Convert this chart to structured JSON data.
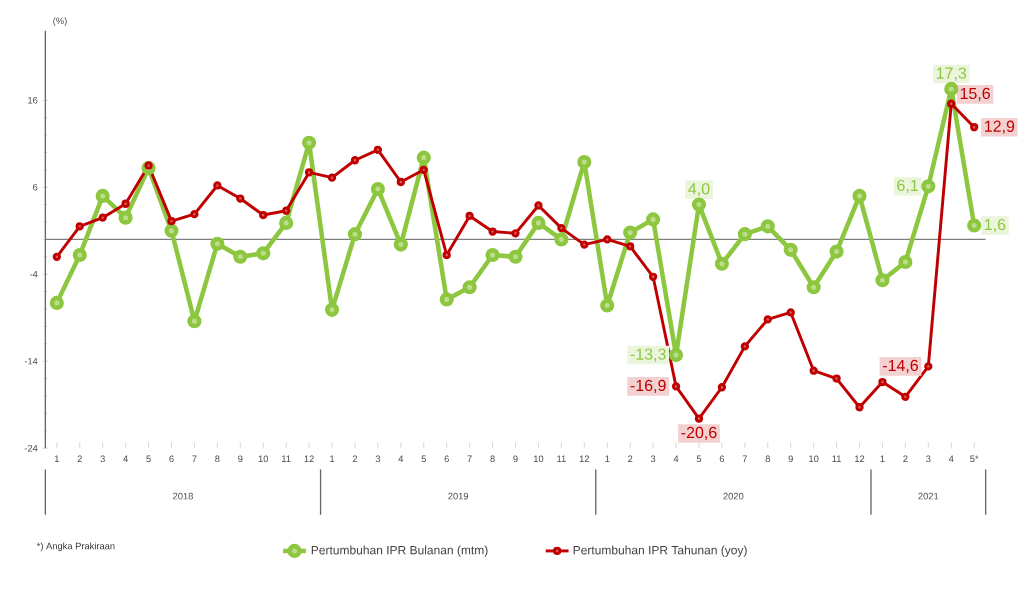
{
  "chart_data": {
    "type": "line",
    "ylabel": "(%)",
    "categories": [
      "1",
      "2",
      "3",
      "4",
      "5",
      "6",
      "7",
      "8",
      "9",
      "10",
      "11",
      "12",
      "1",
      "2",
      "3",
      "4",
      "5",
      "6",
      "7",
      "8",
      "9",
      "10",
      "11",
      "12",
      "1",
      "2",
      "3",
      "4",
      "5",
      "6",
      "7",
      "8",
      "9",
      "10",
      "11",
      "12",
      "1",
      "2",
      "3",
      "4",
      "5*"
    ],
    "series": [
      {
        "name": "Pertumbuhan IPR Bulanan (mtm)",
        "color": "#8dc63f",
        "values": [
          -7.3,
          -1.8,
          5.0,
          2.5,
          8.2,
          1.0,
          -9.4,
          -0.5,
          -2.0,
          -1.6,
          1.9,
          11.1,
          -8.1,
          0.6,
          5.8,
          -0.6,
          9.4,
          -6.9,
          -5.5,
          -1.8,
          -2.0,
          1.9,
          0.0,
          8.9,
          -7.6,
          0.8,
          2.3,
          -13.3,
          4.0,
          -2.8,
          0.6,
          1.5,
          -1.2,
          -5.5,
          -1.4,
          5.0,
          -4.7,
          -2.6,
          6.1,
          17.3,
          1.6
        ],
        "value_labels": [
          null,
          null,
          null,
          null,
          null,
          null,
          null,
          null,
          null,
          null,
          null,
          null,
          null,
          null,
          null,
          null,
          null,
          null,
          null,
          null,
          null,
          null,
          null,
          null,
          null,
          null,
          null,
          "-13,3",
          "4,0",
          null,
          null,
          null,
          null,
          null,
          null,
          null,
          null,
          null,
          "6,1",
          "17,3",
          "1,6"
        ]
      },
      {
        "name": "Pertumbuhan IPR Tahunan (yoy)",
        "color": "#c00000",
        "values": [
          -2.0,
          1.5,
          2.5,
          4.1,
          8.5,
          2.1,
          2.9,
          6.2,
          4.7,
          2.8,
          3.3,
          7.7,
          7.1,
          9.1,
          10.3,
          6.6,
          8.0,
          -1.8,
          2.7,
          0.9,
          0.7,
          3.9,
          1.3,
          -0.6,
          0.0,
          -0.8,
          -4.3,
          -16.9,
          -20.6,
          -17.0,
          -12.3,
          -9.2,
          -8.4,
          -15.1,
          -16.0,
          -19.3,
          -16.4,
          -18.1,
          -14.6,
          15.6,
          12.9
        ],
        "value_labels": [
          null,
          null,
          null,
          null,
          null,
          null,
          null,
          null,
          null,
          null,
          null,
          null,
          null,
          null,
          null,
          null,
          null,
          null,
          null,
          null,
          null,
          null,
          null,
          null,
          null,
          null,
          null,
          "-16,9",
          "-20,6",
          null,
          null,
          null,
          null,
          null,
          null,
          null,
          null,
          null,
          "-14,6",
          "15,6",
          "12,9"
        ]
      }
    ],
    "ylim": [
      -24,
      24
    ],
    "yticks": [
      -24,
      -14,
      -4,
      6,
      16
    ],
    "ref_lines": [
      {
        "axis": "y",
        "value": 0,
        "color": "#7f7f7f"
      }
    ],
    "annotations": [
      "2018",
      "2019",
      "2020",
      "2021",
      "*) Angka Prakiraan"
    ],
    "legend": "bottom",
    "marker": "circle",
    "line_style": "solid",
    "grid": false
  }
}
